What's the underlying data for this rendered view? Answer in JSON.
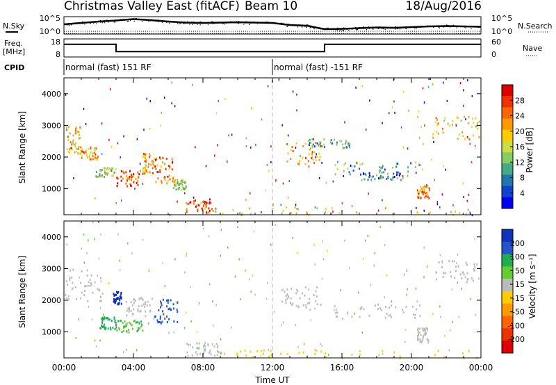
{
  "header": {
    "title": "Christmas Valley East (fitACF)",
    "beam": "Beam 10",
    "date": "18/Aug/2016"
  },
  "chart_data": [
    {
      "type": "line",
      "name": "noise",
      "left_label": "N.Sky",
      "right_label": "N.Search",
      "y_ticks_left": [
        "10^5",
        "10^0"
      ],
      "y_ticks_right": [
        "10^5",
        "10^0"
      ],
      "series": [
        {
          "name": "N.Sky",
          "x": [
            0,
            1,
            2,
            3,
            4,
            5,
            6,
            7,
            8,
            9,
            10,
            11,
            12,
            13,
            14,
            15,
            16,
            17,
            18,
            19,
            20,
            21,
            22,
            23,
            24
          ],
          "values": [
            2.8,
            3.2,
            3.6,
            3.9,
            4.3,
            4.0,
            3.6,
            3.3,
            3.2,
            3.3,
            3.4,
            3.3,
            3.2,
            2.6,
            2.4,
            1.4,
            1.5,
            1.7,
            1.9,
            1.8,
            2.0,
            2.2,
            2.3,
            2.2,
            2.1
          ]
        },
        {
          "name": "N.Search",
          "x": [
            0,
            24
          ],
          "values": [
            0.8,
            0.8
          ]
        }
      ],
      "ylim": [
        0,
        5
      ],
      "xlim": [
        0,
        24
      ]
    },
    {
      "type": "line",
      "name": "frequency",
      "left_label_1": "Freq.",
      "left_label_2": "[MHz]",
      "right_label": "Nave",
      "y_ticks_left": [
        "18",
        "8"
      ],
      "y_ticks_right": [
        "60",
        "0"
      ],
      "series": [
        {
          "name": "Freq.",
          "x": [
            0,
            3,
            3,
            15,
            15,
            24
          ],
          "values": [
            15,
            15,
            11,
            11,
            15,
            15
          ]
        },
        {
          "name": "Nave",
          "x": [
            0,
            24
          ],
          "values": [
            21,
            21
          ]
        }
      ],
      "ylim": [
        8,
        18
      ],
      "xlim": [
        0,
        24
      ]
    },
    {
      "type": "table",
      "name": "cpid",
      "label": "CPID",
      "segments": [
        {
          "start": 0,
          "end": 12,
          "text": "normal (fast) 151 RF"
        },
        {
          "start": 12,
          "end": 24,
          "text": "normal (fast) -151 RF"
        }
      ]
    },
    {
      "type": "heatmap",
      "name": "power",
      "ylabel": "Slant Range [km]",
      "xlim": [
        0,
        24
      ],
      "ylim": [
        180,
        4500
      ],
      "y_ticks": [
        1000,
        2000,
        3000,
        4000
      ],
      "colorbar": {
        "label": "Power [dB]",
        "ticks": [
          "28",
          "24",
          "20",
          "16",
          "12",
          "8",
          "4"
        ],
        "colors": [
          "#dd0000",
          "#ee3300",
          "#ff6600",
          "#ff9900",
          "#ffcc00",
          "#ccdd44",
          "#88cc66",
          "#44aa88",
          "#2277aa",
          "#1144cc",
          "#0000ee"
        ]
      },
      "regions": [
        {
          "t0": 0.1,
          "t1": 0.9,
          "r0": 2000,
          "r1": 3000,
          "v": 18
        },
        {
          "t0": 0.9,
          "t1": 2.0,
          "r0": 1950,
          "r1": 2350,
          "v": 20
        },
        {
          "t0": 1.8,
          "t1": 3.0,
          "r0": 1400,
          "r1": 1700,
          "v": 14
        },
        {
          "t0": 3.0,
          "t1": 4.3,
          "r0": 1100,
          "r1": 1600,
          "v": 26
        },
        {
          "t0": 4.3,
          "t1": 5.2,
          "r0": 1500,
          "r1": 2150,
          "v": 20
        },
        {
          "t0": 5.2,
          "t1": 6.3,
          "r0": 1200,
          "r1": 2050,
          "v": 24
        },
        {
          "t0": 6.3,
          "t1": 7.0,
          "r0": 1000,
          "r1": 1300,
          "v": 14
        },
        {
          "t0": 7.0,
          "t1": 8.5,
          "r0": 250,
          "r1": 700,
          "v": 26
        },
        {
          "t0": 8.5,
          "t1": 24,
          "r0": 200,
          "r1": 450,
          "v": 16
        },
        {
          "t0": 12.8,
          "t1": 14.8,
          "r0": 1800,
          "r1": 2500,
          "v": 20
        },
        {
          "t0": 15.5,
          "t1": 20.5,
          "r0": 1450,
          "r1": 1900,
          "v": 10
        },
        {
          "t0": 17.0,
          "t1": 19.5,
          "r0": 1300,
          "r1": 1550,
          "v": 6
        },
        {
          "t0": 20.3,
          "t1": 21.0,
          "r0": 700,
          "r1": 1150,
          "v": 22
        },
        {
          "t0": 21.2,
          "t1": 23.9,
          "r0": 2600,
          "r1": 3300,
          "v": 18
        },
        {
          "t0": 14.0,
          "t1": 16.5,
          "r0": 2300,
          "r1": 2600,
          "v": 8
        }
      ]
    },
    {
      "type": "heatmap",
      "name": "velocity",
      "ylabel": "Slant Range [km]",
      "xlabel": "Time UT",
      "xlim": [
        0,
        24
      ],
      "ylim": [
        180,
        4500
      ],
      "y_ticks": [
        1000,
        2000,
        3000,
        4000
      ],
      "x_ticks": [
        "00:00",
        "04:00",
        "08:00",
        "12:00",
        "16:00",
        "20:00",
        "00:00"
      ],
      "colorbar": {
        "label": "Velocity [m s⁻¹]",
        "ticks": [
          "200",
          "100",
          "50",
          "15",
          "-15",
          "-50",
          "-100",
          "-200"
        ],
        "colors": [
          "#1133bb",
          "#2255cc",
          "#22aa55",
          "#66cc33",
          "#bbbbbb",
          "#ffcc00",
          "#ff9900",
          "#ff6600",
          "#ee3300",
          "#dd0000"
        ]
      },
      "regions": [
        {
          "t0": 0.1,
          "t1": 2.2,
          "r0": 2000,
          "r1": 3000,
          "v": 0
        },
        {
          "t0": 2.8,
          "t1": 3.3,
          "r0": 1900,
          "r1": 2300,
          "v": 200
        },
        {
          "t0": 2.0,
          "t1": 3.0,
          "r0": 1100,
          "r1": 1500,
          "v": 60
        },
        {
          "t0": 3.0,
          "t1": 4.5,
          "r0": 1000,
          "r1": 1400,
          "v": 50
        },
        {
          "t0": 3.5,
          "t1": 5.2,
          "r0": 1500,
          "r1": 2100,
          "v": 0
        },
        {
          "t0": 5.2,
          "t1": 6.5,
          "r0": 1300,
          "r1": 2050,
          "v": 150
        },
        {
          "t0": 7.0,
          "t1": 9.0,
          "r0": 250,
          "r1": 700,
          "v": 0
        },
        {
          "t0": 9.0,
          "t1": 24,
          "r0": 200,
          "r1": 450,
          "v": -40
        },
        {
          "t0": 12.5,
          "t1": 14.8,
          "r0": 1800,
          "r1": 2500,
          "v": 0
        },
        {
          "t0": 15.5,
          "t1": 20.5,
          "r0": 1450,
          "r1": 1900,
          "v": 0
        },
        {
          "t0": 20.3,
          "t1": 21.0,
          "r0": 700,
          "r1": 1150,
          "v": 0
        },
        {
          "t0": 21.2,
          "t1": 23.9,
          "r0": 2600,
          "r1": 3300,
          "v": 0
        }
      ]
    }
  ]
}
